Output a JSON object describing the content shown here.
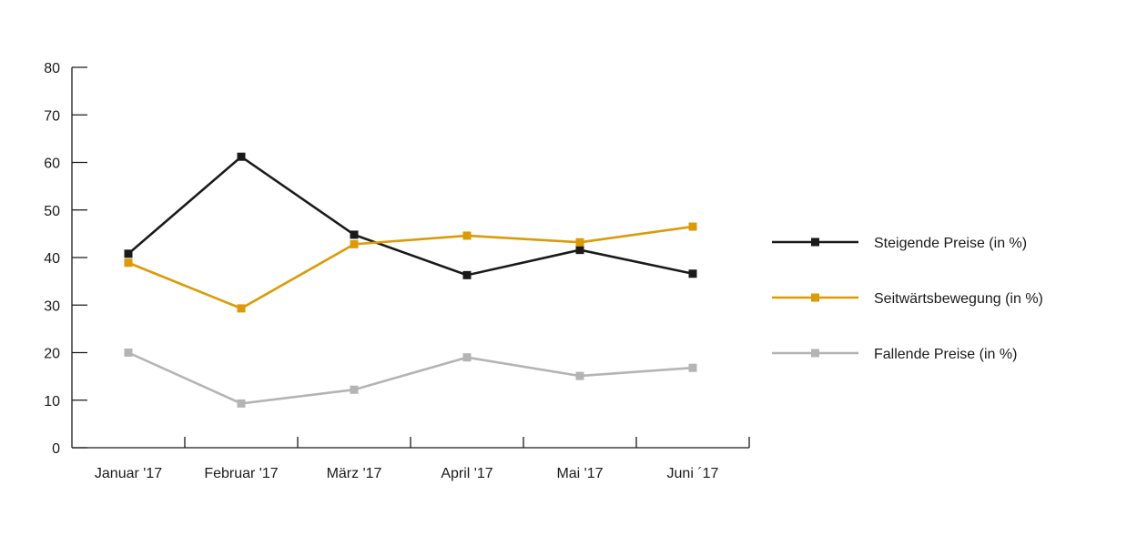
{
  "chart_data": {
    "type": "line",
    "title": "",
    "xlabel": "",
    "ylabel": "",
    "categories": [
      "Januar '17",
      "Februar '17",
      "März '17",
      "April '17",
      "Mai '17",
      "Juni ´17"
    ],
    "ylim": [
      0,
      80
    ],
    "yticks": [
      0,
      10,
      20,
      30,
      40,
      50,
      60,
      70,
      80
    ],
    "grid": false,
    "legend_position": "right",
    "series": [
      {
        "name": "Steigende Preise (in %)",
        "color": "#1a1a1a",
        "values": [
          40.8,
          61.2,
          44.8,
          36.3,
          41.6,
          36.6
        ]
      },
      {
        "name": "Seitwärtsbewegung (in %)",
        "color": "#dc9a06",
        "values": [
          38.9,
          29.3,
          42.8,
          44.6,
          43.2,
          46.5
        ]
      },
      {
        "name": "Fallende Preise (in %)",
        "color": "#b4b4b4",
        "values": [
          20.0,
          9.3,
          12.2,
          19.0,
          15.1,
          16.8
        ]
      }
    ]
  }
}
